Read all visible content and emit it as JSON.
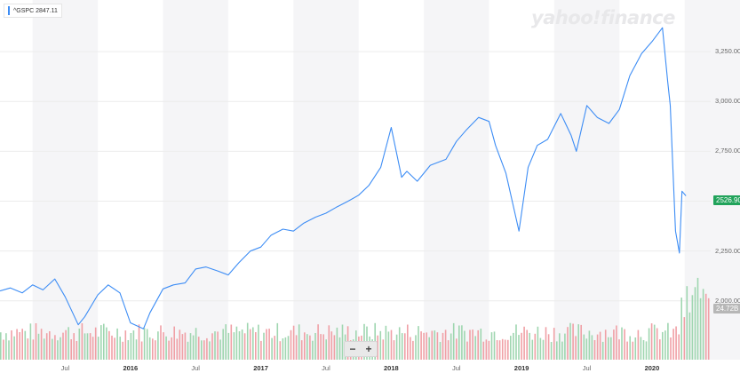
{
  "legend": {
    "symbol_label": "^GSPC 2847.11",
    "line_color": "#3d8df5"
  },
  "logo": {
    "text": "yahoo!finance"
  },
  "price_tag": {
    "text": "2526.90",
    "color": "#21a35b"
  },
  "volume_tag": {
    "text": "24.72B",
    "color": "#b7b7b7"
  },
  "zoom": {
    "minus": "−",
    "plus": "+"
  },
  "chart_data": {
    "type": "line",
    "xlabel": "",
    "ylabel": "",
    "y_ticks": [
      "3,250.00",
      "3,000.00",
      "2,750.00",
      "2,500.00",
      "2,250.00",
      "2,000.00"
    ],
    "ylim": [
      1950,
      3420
    ],
    "x_ticks": [
      "Jul",
      "2016",
      "Jul",
      "2017",
      "Jul",
      "2018",
      "Jul",
      "2019",
      "Jul",
      "2020"
    ],
    "xlim": [
      2015.0,
      2020.45
    ],
    "grid": true,
    "series": [
      {
        "x": [
          2015.0,
          2015.08,
          2015.17,
          2015.25,
          2015.33,
          2015.42,
          2015.5,
          2015.6,
          2015.65,
          2015.75,
          2015.83,
          2015.92,
          2016.0,
          2016.1,
          2016.15,
          2016.25,
          2016.33,
          2016.42,
          2016.5,
          2016.58,
          2016.67,
          2016.75,
          2016.83,
          2016.92,
          2017.0,
          2017.08,
          2017.17,
          2017.25,
          2017.33,
          2017.42,
          2017.5,
          2017.58,
          2017.67,
          2017.75,
          2017.83,
          2017.92,
          2018.0,
          2018.08,
          2018.12,
          2018.2,
          2018.3,
          2018.42,
          2018.5,
          2018.58,
          2018.67,
          2018.75,
          2018.8,
          2018.88,
          2018.98,
          2019.05,
          2019.12,
          2019.2,
          2019.3,
          2019.38,
          2019.42,
          2019.5,
          2019.58,
          2019.67,
          2019.75,
          2019.83,
          2019.92,
          2020.0,
          2020.08,
          2020.12,
          2020.14,
          2020.18,
          2020.21,
          2020.23,
          2020.26
        ],
        "values": [
          2050,
          2065,
          2040,
          2080,
          2055,
          2110,
          2020,
          1880,
          1920,
          2030,
          2080,
          2040,
          1890,
          1860,
          1940,
          2060,
          2080,
          2090,
          2160,
          2170,
          2150,
          2130,
          2190,
          2250,
          2270,
          2330,
          2360,
          2350,
          2390,
          2420,
          2440,
          2470,
          2500,
          2530,
          2580,
          2670,
          2870,
          2620,
          2650,
          2600,
          2680,
          2710,
          2800,
          2860,
          2920,
          2900,
          2780,
          2640,
          2350,
          2670,
          2780,
          2810,
          2940,
          2830,
          2750,
          2980,
          2920,
          2890,
          2960,
          3130,
          3240,
          3300,
          3370,
          3100,
          2980,
          2350,
          2240,
          2550,
          2526.9
        ]
      }
    ],
    "volume": {
      "unit": "B",
      "last": 24.72
    }
  }
}
